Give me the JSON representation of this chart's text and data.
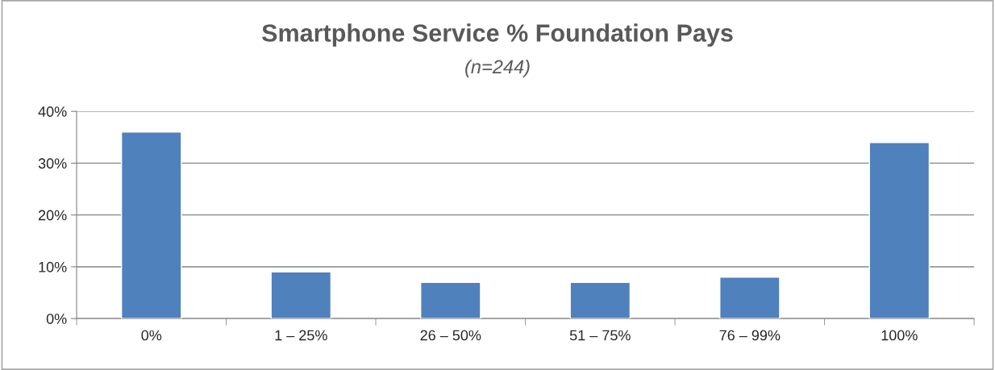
{
  "chart_data": {
    "type": "bar",
    "title": "Smartphone Service % Foundation Pays",
    "subtitle": "(n=244)",
    "categories": [
      "0%",
      "1 – 25%",
      "26 – 50%",
      "51 – 75%",
      "76 – 99%",
      "100%"
    ],
    "values": [
      36,
      9,
      7,
      7,
      8,
      34
    ],
    "color": "#4f81bd",
    "ylim": [
      0,
      40
    ],
    "yticks": [
      {
        "value": 0,
        "label": "0%"
      },
      {
        "value": 10,
        "label": "10%"
      },
      {
        "value": 20,
        "label": "20%"
      },
      {
        "value": 30,
        "label": "30%"
      },
      {
        "value": 40,
        "label": "40%"
      }
    ],
    "grid": "y",
    "legend": false
  }
}
